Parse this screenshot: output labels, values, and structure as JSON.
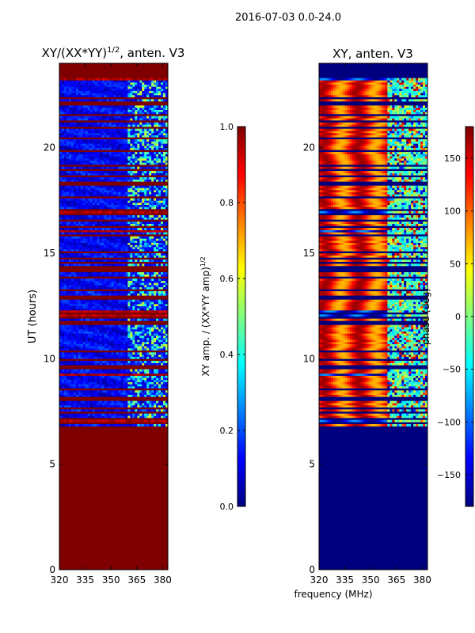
{
  "figure": {
    "suptitle": "2016-07-03 0.0-24.0",
    "shared_xlabel": "frequency (MHz)"
  },
  "chart_data": [
    {
      "type": "heatmap",
      "title": "XY/(XX*YY)^1/2, anten. V3",
      "title_main": "XY/(XX*YY)",
      "title_exp": "1/2",
      "title_tail": ", anten. V3",
      "xlabel": "",
      "ylabel": "UT (hours)",
      "xlim": [
        320,
        383
      ],
      "ylim": [
        0,
        24
      ],
      "xticks": [
        320,
        335,
        350,
        365,
        380
      ],
      "yticks": [
        0,
        5,
        10,
        15,
        20
      ],
      "data_start_hour": 6.6,
      "data_end_hour": 23.3,
      "bright_band_mhz": [
        360,
        383
      ],
      "fill_value_color": "#7f0000",
      "colorbar": {
        "label": "XY amp. / (XX*YY amp)^1/2",
        "label_main": "XY amp. / (XX*YY amp)",
        "label_exp": "1/2",
        "range": [
          0.0,
          1.0
        ],
        "ticks": [
          "0.0",
          "0.2",
          "0.4",
          "0.6",
          "0.8",
          "1.0"
        ],
        "tick_values": [
          0.0,
          0.2,
          0.4,
          0.6,
          0.8,
          1.0
        ]
      }
    },
    {
      "type": "heatmap",
      "title": "XY, anten. V3",
      "xlabel": "frequency (MHz)",
      "ylabel": "",
      "xlim": [
        320,
        383
      ],
      "ylim": [
        0,
        24
      ],
      "xticks": [
        320,
        335,
        350,
        365,
        380
      ],
      "yticks": [
        0,
        5,
        10,
        15,
        20
      ],
      "data_start_hour": 6.6,
      "data_end_hour": 23.3,
      "noisy_band_mhz": [
        360,
        383
      ],
      "fill_value_color": "#00007f",
      "colorbar": {
        "label": "phase (deg)",
        "range": [
          -180,
          180
        ],
        "ticks": [
          "−150",
          "−100",
          "−50",
          "0",
          "50",
          "100",
          "150"
        ],
        "tick_values": [
          -150,
          -100,
          -50,
          0,
          50,
          100,
          150
        ]
      }
    }
  ],
  "colormap": {
    "name": "jet",
    "stops": [
      "#00007f",
      "#0000ff",
      "#007fff",
      "#00ffff",
      "#7fff7f",
      "#ffff00",
      "#ff7f00",
      "#ff0000",
      "#7f0000"
    ]
  }
}
